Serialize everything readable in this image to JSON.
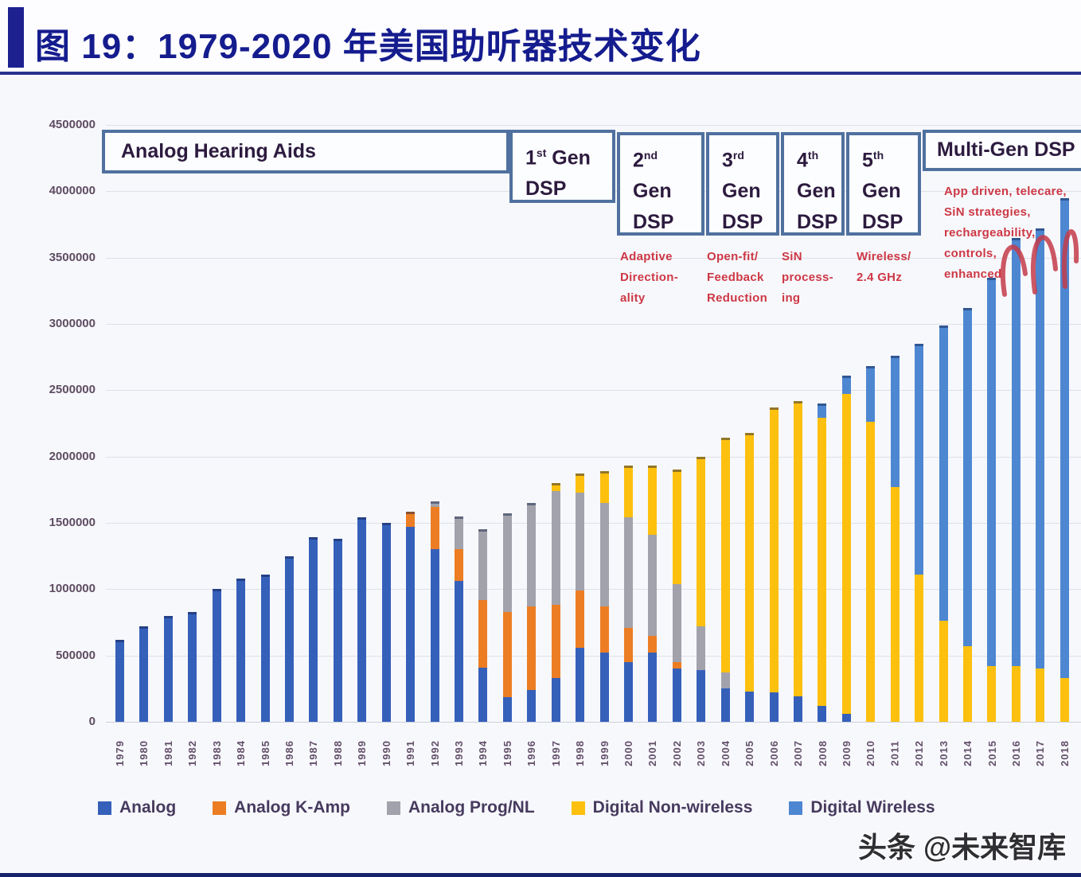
{
  "title": "图 19：1979-2020 年美国助听器技术变化",
  "watermark": "头条 @未来智库",
  "annotations": {
    "analog_box": "Analog Hearing Aids",
    "multi_gen_box": "Multi-Gen DSP",
    "gen_boxes": [
      {
        "num": "1",
        "sup": "st",
        "tail": " Gen",
        "l2": "DSP"
      },
      {
        "num": "2",
        "sup": "nd",
        "l2": "Gen",
        "l3": "DSP"
      },
      {
        "num": "3",
        "sup": "rd",
        "l2": "Gen",
        "l3": "DSP"
      },
      {
        "num": "4",
        "sup": "th",
        "l2": "Gen",
        "l3": "DSP"
      },
      {
        "num": "5",
        "sup": "th",
        "l2": "Gen",
        "l3": "DSP"
      }
    ],
    "red_notes": [
      {
        "lines": [
          "Adaptive",
          "Direction-",
          "ality"
        ]
      },
      {
        "lines": [
          "Open-fit/",
          "Feedback",
          "Reduction"
        ]
      },
      {
        "lines": [
          "SiN",
          "process-",
          "ing"
        ]
      },
      {
        "lines": [
          "Wireless/",
          "2.4 GHz"
        ]
      },
      {
        "lines": [
          "App driven, telecare,",
          "SiN strategies,",
          "rechargeability,",
          "controls,",
          "enhanced"
        ]
      }
    ]
  },
  "chart_data": {
    "type": "bar",
    "stacked": true,
    "title": "",
    "xlabel": "",
    "ylabel": "",
    "ylim": [
      0,
      4500000
    ],
    "ytick_interval": 500000,
    "yticks": [
      "4500000",
      "4000000",
      "3500000",
      "3000000",
      "2500000",
      "2000000",
      "1500000",
      "1000000",
      "500000",
      "0"
    ],
    "grid": true,
    "legend_position": "bottom",
    "categories": [
      "1979",
      "1980",
      "1981",
      "1982",
      "1983",
      "1984",
      "1985",
      "1986",
      "1987",
      "1988",
      "1989",
      "1990",
      "1991",
      "1992",
      "1993",
      "1994",
      "1995",
      "1996",
      "1997",
      "1998",
      "1999",
      "2000",
      "2001",
      "2002",
      "2003",
      "2004",
      "2005",
      "2006",
      "2007",
      "2008",
      "2009",
      "2010",
      "2011",
      "2012",
      "2013",
      "2014",
      "2015",
      "2016",
      "2017",
      "2018"
    ],
    "series": [
      {
        "name": "Analog",
        "color": "#3560ba",
        "values": [
          620000,
          720000,
          800000,
          830000,
          1000000,
          1080000,
          1110000,
          1250000,
          1390000,
          1380000,
          1540000,
          1500000,
          1470000,
          1300000,
          1060000,
          410000,
          185000,
          240000,
          330000,
          560000,
          520000,
          450000,
          520000,
          400000,
          390000,
          250000,
          230000,
          220000,
          190000,
          120000,
          60000,
          0,
          0,
          0,
          0,
          0,
          0,
          0,
          0,
          0
        ]
      },
      {
        "name": "Analog K-Amp",
        "color": "#ec7d23",
        "values": [
          0,
          0,
          0,
          0,
          0,
          0,
          0,
          0,
          0,
          0,
          0,
          0,
          115000,
          320000,
          240000,
          510000,
          645000,
          630000,
          550000,
          430000,
          350000,
          260000,
          130000,
          50000,
          0,
          0,
          0,
          0,
          0,
          0,
          0,
          0,
          0,
          0,
          0,
          0,
          0,
          0,
          0,
          0
        ]
      },
      {
        "name": "Analog Prog/NL",
        "color": "#a2a2ac",
        "values": [
          0,
          0,
          0,
          0,
          0,
          0,
          0,
          0,
          0,
          0,
          0,
          0,
          0,
          45000,
          250000,
          535000,
          740000,
          780000,
          860000,
          740000,
          780000,
          830000,
          760000,
          590000,
          330000,
          120000,
          0,
          0,
          0,
          0,
          0,
          0,
          0,
          0,
          0,
          0,
          0,
          0,
          0,
          0
        ]
      },
      {
        "name": "Digital Non-wireless",
        "color": "#fdc00e",
        "values": [
          0,
          0,
          0,
          0,
          0,
          0,
          0,
          0,
          0,
          0,
          0,
          0,
          0,
          0,
          0,
          0,
          0,
          0,
          60000,
          140000,
          240000,
          390000,
          520000,
          860000,
          1280000,
          1770000,
          1950000,
          2150000,
          2230000,
          2170000,
          2410000,
          2260000,
          1770000,
          1110000,
          760000,
          570000,
          420000,
          420000,
          400000,
          330000
        ]
      },
      {
        "name": "Digital Wireless",
        "color": "#4e87d1",
        "values": [
          0,
          0,
          0,
          0,
          0,
          0,
          0,
          0,
          0,
          0,
          0,
          0,
          0,
          0,
          0,
          0,
          0,
          0,
          0,
          0,
          0,
          0,
          0,
          0,
          0,
          0,
          0,
          0,
          0,
          110000,
          140000,
          420000,
          990000,
          1740000,
          2230000,
          2550000,
          2930000,
          3230000,
          3320000,
          3620000
        ]
      }
    ]
  }
}
